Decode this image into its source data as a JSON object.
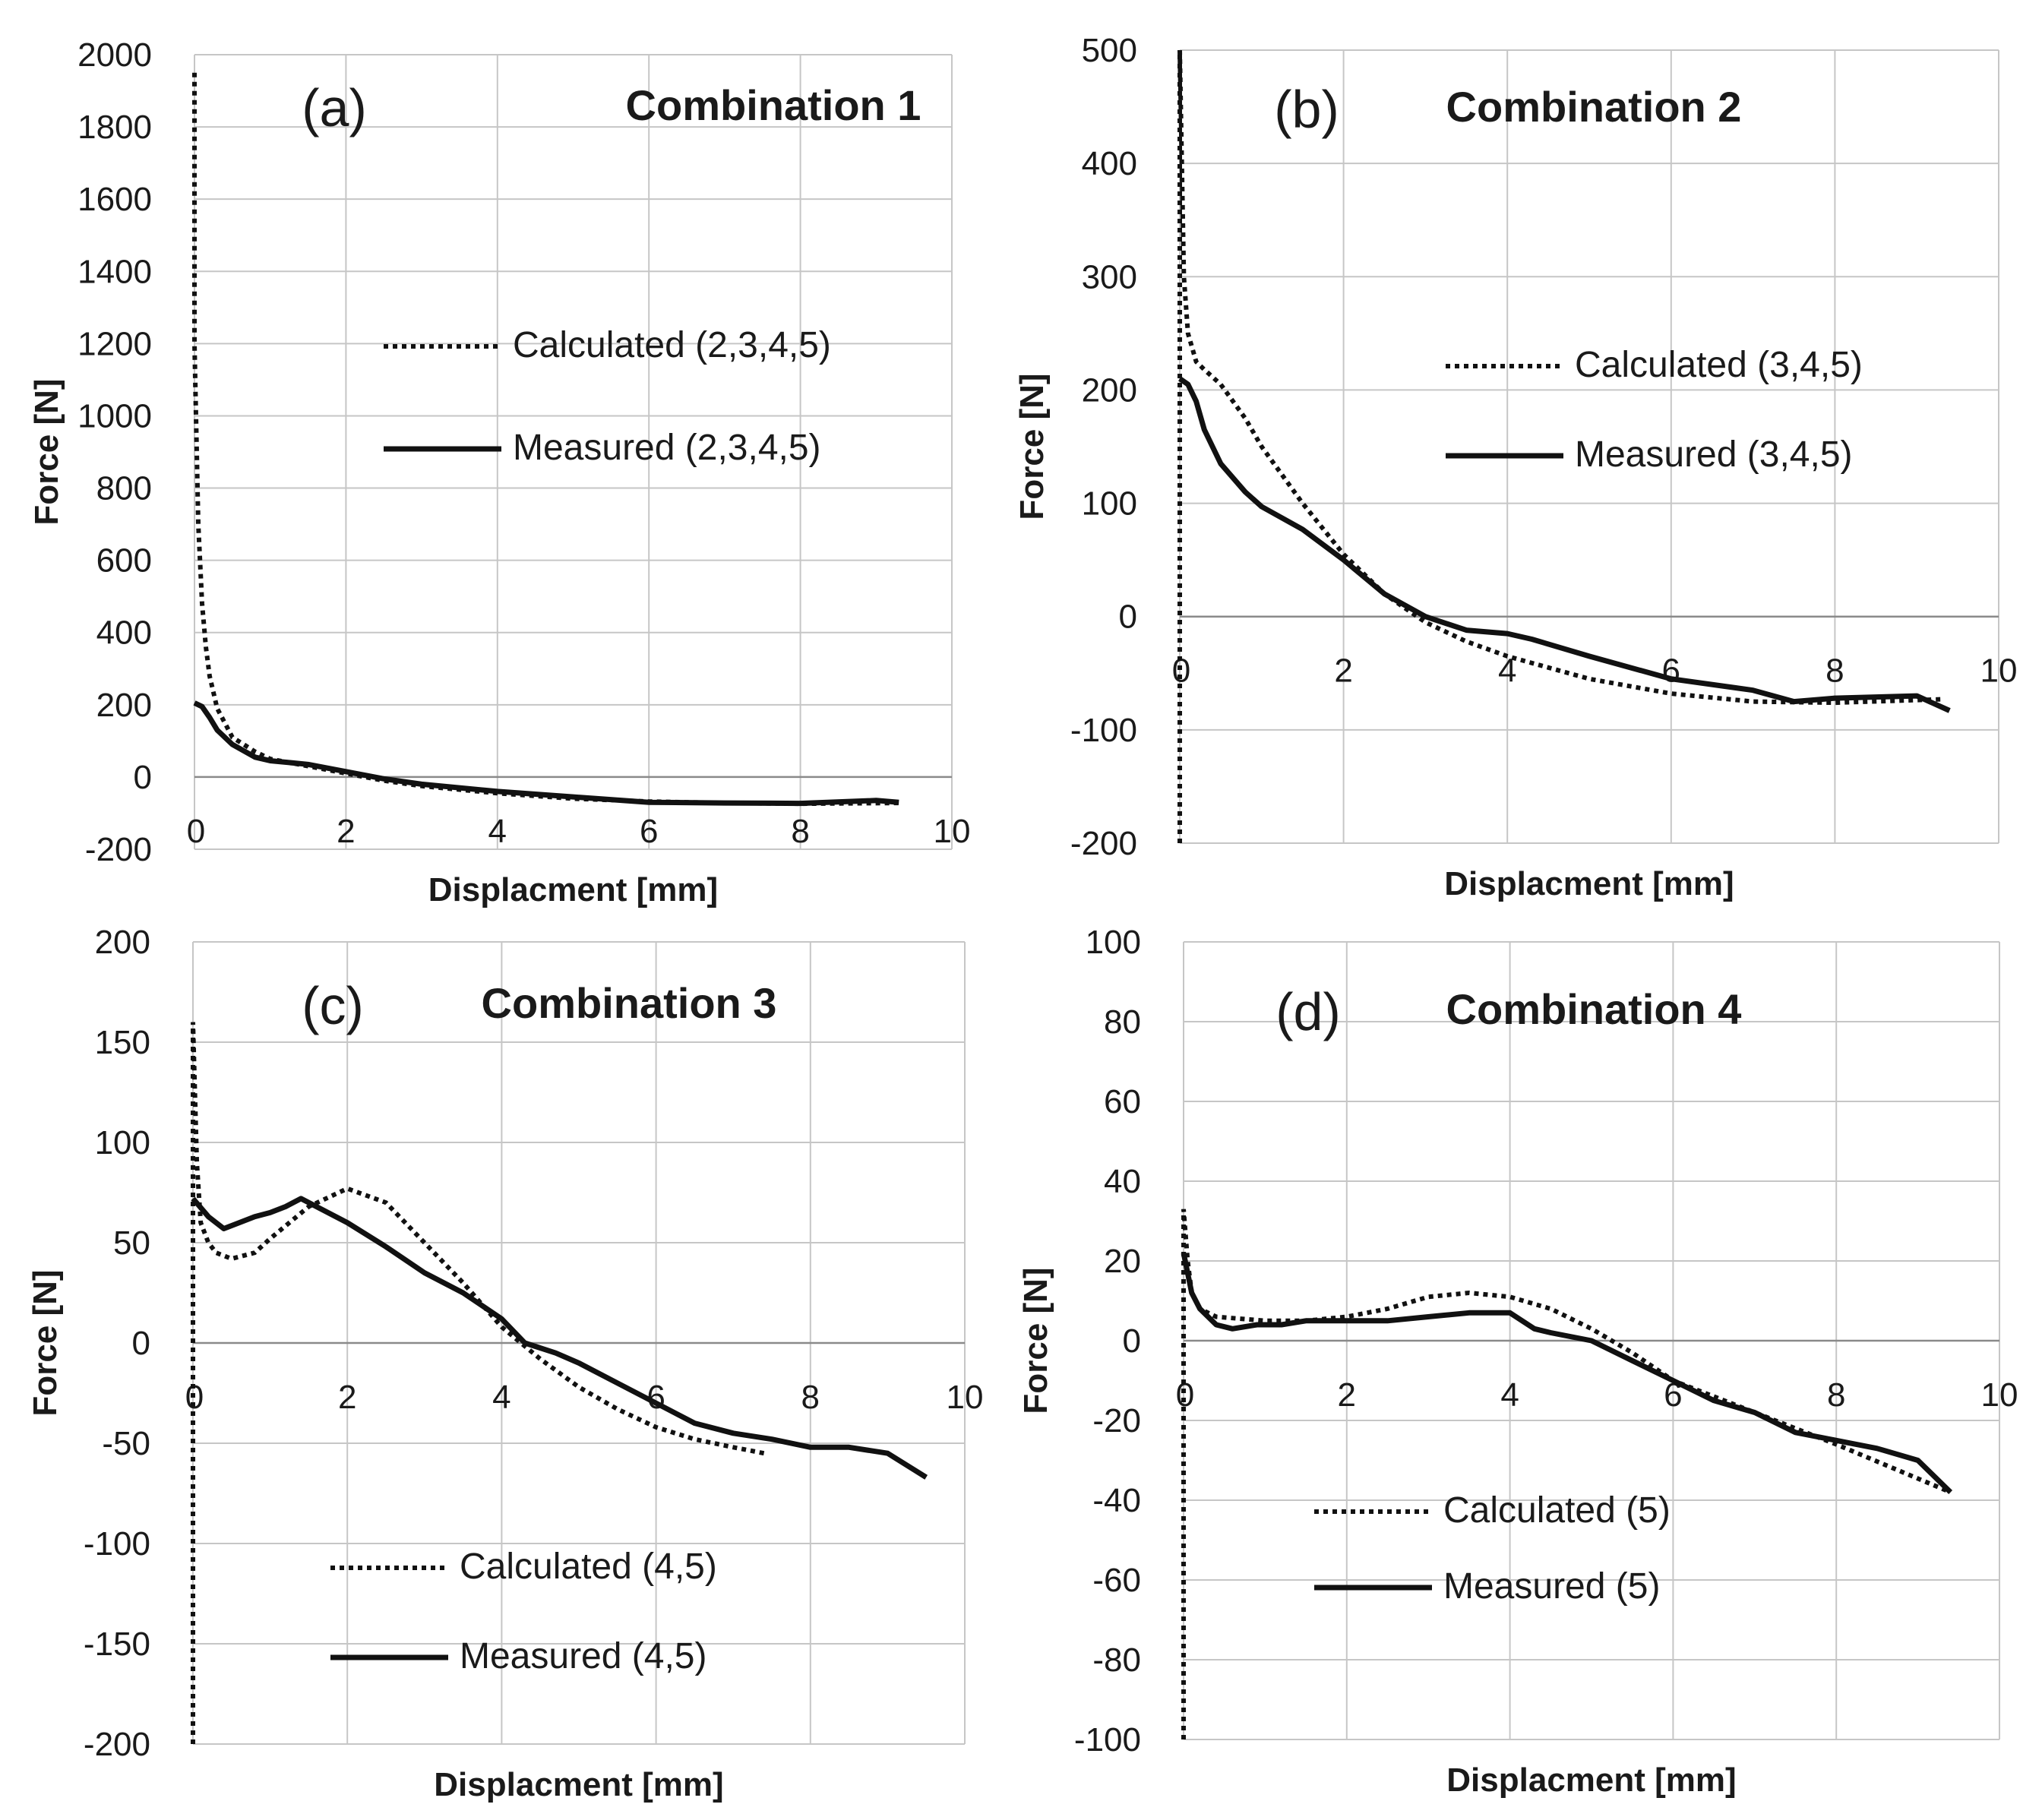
{
  "colors": {
    "line": "#111111",
    "grid": "#c6c6c6"
  },
  "chart_data": [
    {
      "type": "line",
      "panel_label": "(a)",
      "title": "Combination 1",
      "xlabel": "Displacment [mm]",
      "ylabel": "Force [N]",
      "xlim": [
        0,
        10
      ],
      "ylim": [
        -200,
        2000
      ],
      "xticks": [
        0,
        2,
        4,
        6,
        8,
        10
      ],
      "yticks": [
        -200,
        0,
        200,
        400,
        600,
        800,
        1000,
        1200,
        1400,
        1600,
        1800,
        2000
      ],
      "grid": true,
      "legend_position": "center-right",
      "series": [
        {
          "name": "Calculated (2,3,4,5)",
          "style": "dotted",
          "x": [
            0,
            0,
            0.05,
            0.1,
            0.15,
            0.2,
            0.3,
            0.5,
            0.8,
            1.0,
            1.5,
            2.0,
            2.5,
            3.0,
            4.0,
            5.0,
            6.0,
            7.0,
            8.0,
            9.3
          ],
          "y": [
            1950,
            1200,
            700,
            480,
            360,
            280,
            190,
            110,
            70,
            50,
            30,
            10,
            -10,
            -25,
            -45,
            -60,
            -68,
            -72,
            -74,
            -72
          ]
        },
        {
          "name": "Measured (2,3,4,5)",
          "style": "solid",
          "x": [
            0,
            0.1,
            0.2,
            0.3,
            0.5,
            0.8,
            1.0,
            1.5,
            2.0,
            2.5,
            3.0,
            4.0,
            5.0,
            6.0,
            7.0,
            8.0,
            9.0,
            9.3
          ],
          "y": [
            205,
            195,
            165,
            130,
            90,
            55,
            45,
            35,
            15,
            -5,
            -20,
            -40,
            -55,
            -70,
            -72,
            -73,
            -65,
            -70
          ]
        }
      ]
    },
    {
      "type": "line",
      "panel_label": "(b)",
      "title": "Combination 2",
      "xlabel": "Displacment [mm]",
      "ylabel": "Force [N]",
      "xlim": [
        0,
        10
      ],
      "ylim": [
        -200,
        500
      ],
      "xticks": [
        0,
        2,
        4,
        6,
        8,
        10
      ],
      "yticks": [
        -200,
        -100,
        0,
        100,
        200,
        300,
        400,
        500
      ],
      "grid": true,
      "legend_position": "center-right",
      "series": [
        {
          "name": "Calculated (3,4,5)",
          "style": "dotted",
          "x": [
            0,
            0,
            0.05,
            0.1,
            0.2,
            0.3,
            0.5,
            0.8,
            1.0,
            1.5,
            2.0,
            2.5,
            3.0,
            3.5,
            4.0,
            4.5,
            5.0,
            6.0,
            7.0,
            8.0,
            9.3
          ],
          "y": [
            -200,
            500,
            300,
            250,
            225,
            218,
            205,
            175,
            150,
            100,
            55,
            20,
            -5,
            -22,
            -35,
            -45,
            -55,
            -68,
            -75,
            -76,
            -73
          ]
        },
        {
          "name": "Measured (3,4,5)",
          "style": "solid",
          "x": [
            0,
            0.1,
            0.2,
            0.3,
            0.5,
            0.8,
            1.0,
            1.5,
            2.0,
            2.5,
            3.0,
            3.5,
            4.0,
            4.3,
            5.0,
            6.0,
            7.0,
            7.5,
            8.0,
            9.0,
            9.4
          ],
          "y": [
            210,
            205,
            190,
            165,
            135,
            110,
            97,
            77,
            50,
            20,
            0,
            -12,
            -15,
            -20,
            -35,
            -55,
            -65,
            -75,
            -72,
            -70,
            -83
          ]
        }
      ]
    },
    {
      "type": "line",
      "panel_label": "(c)",
      "title": "Combination 3",
      "xlabel": "Displacment [mm]",
      "ylabel": "Force [N]",
      "xlim": [
        0,
        10
      ],
      "ylim": [
        -200,
        200
      ],
      "xticks": [
        0,
        2,
        4,
        6,
        8,
        10
      ],
      "yticks": [
        -200,
        -150,
        -100,
        -50,
        0,
        50,
        100,
        150,
        200
      ],
      "grid": true,
      "legend_position": "bottom-right",
      "series": [
        {
          "name": "Calculated (4,5)",
          "style": "dotted",
          "x": [
            0,
            0,
            0.05,
            0.1,
            0.2,
            0.3,
            0.5,
            0.8,
            1.0,
            1.5,
            2.0,
            2.5,
            3.0,
            3.5,
            4.0,
            4.5,
            5.0,
            5.5,
            6.0,
            6.5,
            7.0,
            7.4
          ],
          "y": [
            -200,
            160,
            90,
            60,
            50,
            45,
            42,
            45,
            52,
            68,
            77,
            70,
            50,
            30,
            8,
            -8,
            -22,
            -33,
            -42,
            -48,
            -52,
            -55
          ]
        },
        {
          "name": "Measured (4,5)",
          "style": "solid",
          "x": [
            0,
            0.2,
            0.4,
            0.6,
            0.8,
            1.0,
            1.2,
            1.4,
            1.6,
            2.0,
            2.5,
            3.0,
            3.5,
            4.0,
            4.3,
            4.7,
            5.0,
            5.5,
            6.0,
            6.5,
            7.0,
            7.5,
            8.0,
            8.5,
            9.0,
            9.5
          ],
          "y": [
            72,
            63,
            57,
            60,
            63,
            65,
            68,
            72,
            68,
            60,
            48,
            35,
            25,
            12,
            0,
            -5,
            -10,
            -20,
            -30,
            -40,
            -45,
            -48,
            -52,
            -52,
            -55,
            -67
          ]
        }
      ]
    },
    {
      "type": "line",
      "panel_label": "(d)",
      "title": "Combination 4",
      "xlabel": "Displacment [mm]",
      "ylabel": "Force [N]",
      "xlim": [
        0,
        10
      ],
      "ylim": [
        -100,
        100
      ],
      "xticks": [
        0,
        2,
        4,
        6,
        8,
        10
      ],
      "yticks": [
        -100,
        -80,
        -60,
        -40,
        -20,
        0,
        20,
        40,
        60,
        80,
        100
      ],
      "grid": true,
      "legend_position": "bottom-center",
      "series": [
        {
          "name": "Calculated (5)",
          "style": "dotted",
          "x": [
            0,
            0,
            0.05,
            0.1,
            0.2,
            0.4,
            0.7,
            1.0,
            1.5,
            2.0,
            2.5,
            3.0,
            3.5,
            4.0,
            4.5,
            5.0,
            5.5,
            6.0,
            7.0,
            8.0,
            9.4
          ],
          "y": [
            -100,
            33,
            20,
            12,
            8,
            6,
            5.5,
            5,
            5,
            6,
            8,
            11,
            12,
            11,
            8,
            3,
            -3,
            -10,
            -18,
            -26,
            -38
          ]
        },
        {
          "name": "Measured (5)",
          "style": "solid",
          "x": [
            0,
            0.1,
            0.2,
            0.4,
            0.6,
            0.9,
            1.2,
            1.5,
            2.0,
            2.5,
            3.0,
            3.5,
            4.0,
            4.3,
            4.5,
            5.0,
            5.5,
            6.0,
            6.5,
            7.0,
            7.5,
            8.0,
            8.5,
            9.0,
            9.4
          ],
          "y": [
            22,
            12,
            8,
            4,
            3,
            4,
            4,
            5,
            5,
            5,
            6,
            7,
            7,
            3,
            2,
            0,
            -5,
            -10,
            -15,
            -18,
            -23,
            -25,
            -27,
            -30,
            -38
          ]
        }
      ]
    }
  ]
}
